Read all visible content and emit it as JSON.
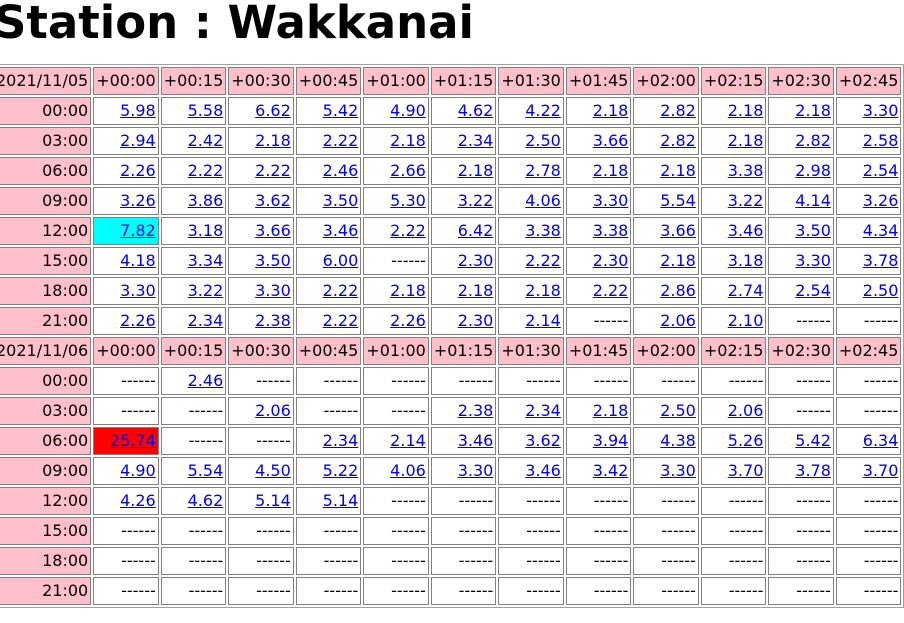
{
  "page": {
    "title": "Station : Wakkanai"
  },
  "table": {
    "columns": [
      "+00:00",
      "+00:15",
      "+00:30",
      "+00:45",
      "+01:00",
      "+01:15",
      "+01:30",
      "+01:45",
      "+02:00",
      "+02:15",
      "+02:30",
      "+02:45"
    ],
    "empty_marker": "------",
    "highlight_colors": {
      "cyan": "#00ffff",
      "red": "#ff0000"
    },
    "blocks": [
      {
        "date": "2021/11/05",
        "rows": [
          {
            "time": "00:00",
            "values": [
              "5.98",
              "5.58",
              "6.62",
              "5.42",
              "4.90",
              "4.62",
              "4.22",
              "2.18",
              "2.82",
              "2.18",
              "2.18",
              "3.30"
            ]
          },
          {
            "time": "03:00",
            "values": [
              "2.94",
              "2.42",
              "2.18",
              "2.22",
              "2.18",
              "2.34",
              "2.50",
              "3.66",
              "2.82",
              "2.18",
              "2.82",
              "2.58"
            ]
          },
          {
            "time": "06:00",
            "values": [
              "2.26",
              "2.22",
              "2.22",
              "2.46",
              "2.66",
              "2.18",
              "2.78",
              "2.18",
              "2.18",
              "3.38",
              "2.98",
              "2.54"
            ]
          },
          {
            "time": "09:00",
            "values": [
              "3.26",
              "3.86",
              "3.62",
              "3.50",
              "5.30",
              "3.22",
              "4.06",
              "3.30",
              "5.54",
              "3.22",
              "4.14",
              "3.26"
            ]
          },
          {
            "time": "12:00",
            "values": [
              "7.82",
              "3.18",
              "3.66",
              "3.46",
              "2.22",
              "6.42",
              "3.38",
              "3.38",
              "3.66",
              "3.46",
              "3.50",
              "4.34"
            ],
            "highlights": {
              "0": "cyan"
            }
          },
          {
            "time": "15:00",
            "values": [
              "4.18",
              "3.34",
              "3.50",
              "6.00",
              null,
              "2.30",
              "2.22",
              "2.30",
              "2.18",
              "3.18",
              "3.30",
              "3.78"
            ]
          },
          {
            "time": "18:00",
            "values": [
              "3.30",
              "3.22",
              "3.30",
              "2.22",
              "2.18",
              "2.18",
              "2.18",
              "2.22",
              "2.86",
              "2.74",
              "2.54",
              "2.50"
            ]
          },
          {
            "time": "21:00",
            "values": [
              "2.26",
              "2.34",
              "2.38",
              "2.22",
              "2.26",
              "2.30",
              "2.14",
              null,
              "2.06",
              "2.10",
              null,
              null
            ]
          }
        ]
      },
      {
        "date": "2021/11/06",
        "rows": [
          {
            "time": "00:00",
            "values": [
              null,
              "2.46",
              null,
              null,
              null,
              null,
              null,
              null,
              null,
              null,
              null,
              null
            ]
          },
          {
            "time": "03:00",
            "values": [
              null,
              null,
              "2.06",
              null,
              null,
              "2.38",
              "2.34",
              "2.18",
              "2.50",
              "2.06",
              null,
              null
            ]
          },
          {
            "time": "06:00",
            "values": [
              "25.74",
              null,
              null,
              "2.34",
              "2.14",
              "3.46",
              "3.62",
              "3.94",
              "4.38",
              "5.26",
              "5.42",
              "6.34"
            ],
            "highlights": {
              "0": "red"
            }
          },
          {
            "time": "09:00",
            "values": [
              "4.90",
              "5.54",
              "4.50",
              "5.22",
              "4.06",
              "3.30",
              "3.46",
              "3.42",
              "3.30",
              "3.70",
              "3.78",
              "3.70"
            ]
          },
          {
            "time": "12:00",
            "values": [
              "4.26",
              "4.62",
              "5.14",
              "5.14",
              null,
              null,
              null,
              null,
              null,
              null,
              null,
              null
            ]
          },
          {
            "time": "15:00",
            "values": [
              null,
              null,
              null,
              null,
              null,
              null,
              null,
              null,
              null,
              null,
              null,
              null
            ]
          },
          {
            "time": "18:00",
            "values": [
              null,
              null,
              null,
              null,
              null,
              null,
              null,
              null,
              null,
              null,
              null,
              null
            ]
          },
          {
            "time": "21:00",
            "values": [
              null,
              null,
              null,
              null,
              null,
              null,
              null,
              null,
              null,
              null,
              null,
              null
            ]
          }
        ]
      }
    ]
  }
}
